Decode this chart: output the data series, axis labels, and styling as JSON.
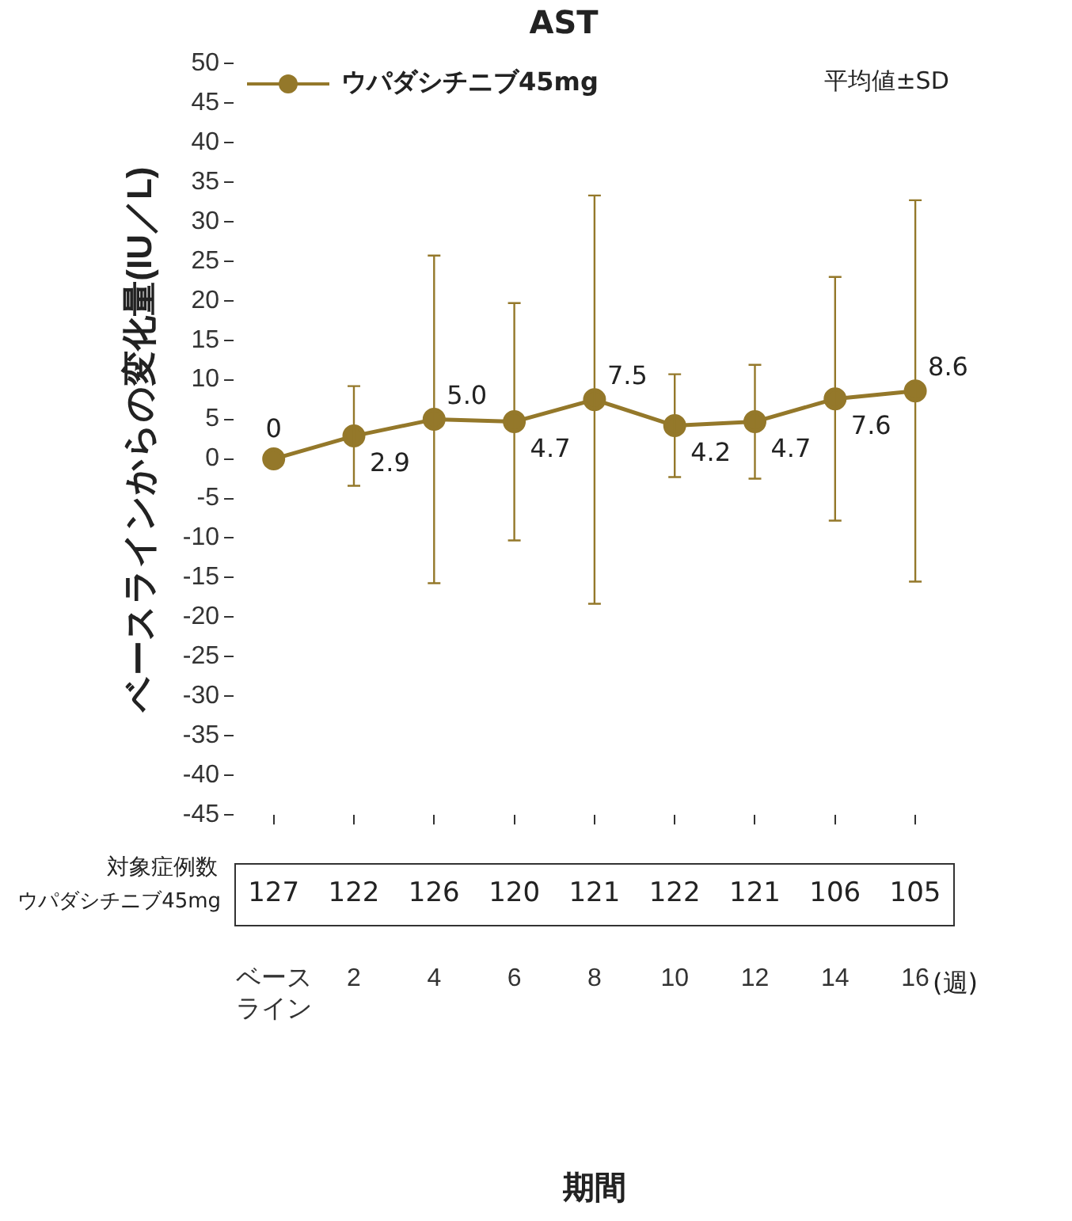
{
  "chart_data": {
    "type": "line",
    "title": "AST",
    "xlabel": "期間",
    "ylabel": "ベースラインからの変化量(IU／L)",
    "categories": [
      "ベースライン",
      "2",
      "4",
      "6",
      "8",
      "10",
      "12",
      "14",
      "16"
    ],
    "series": [
      {
        "name": "ウパダシチニブ45mg",
        "color": "#94782a",
        "values": [
          0,
          2.9,
          5.0,
          4.7,
          7.5,
          4.2,
          4.7,
          7.6,
          8.6
        ],
        "errors": [
          null,
          6.3,
          20.7,
          15.0,
          25.8,
          6.5,
          7.2,
          15.4,
          24.1
        ],
        "value_labels": [
          "0",
          "2.9",
          "5.0",
          "4.7",
          "7.5",
          "4.2",
          "4.7",
          "7.6",
          "8.6"
        ]
      }
    ],
    "ylim": [
      -45,
      50
    ],
    "yticks": [
      -45,
      -40,
      -35,
      -30,
      -25,
      -20,
      -15,
      -10,
      -5,
      0,
      5,
      10,
      15,
      20,
      25,
      30,
      35,
      40,
      45,
      50
    ],
    "grid": false,
    "legend": "top left",
    "marker": "circle",
    "line_style": "solid",
    "annotations": [
      "平均値±SD",
      "(週)",
      "対象症例数",
      "ウパダシチニブ45mg",
      "127",
      "122",
      "126",
      "120",
      "121",
      "122",
      "121",
      "106",
      "105"
    ]
  }
}
